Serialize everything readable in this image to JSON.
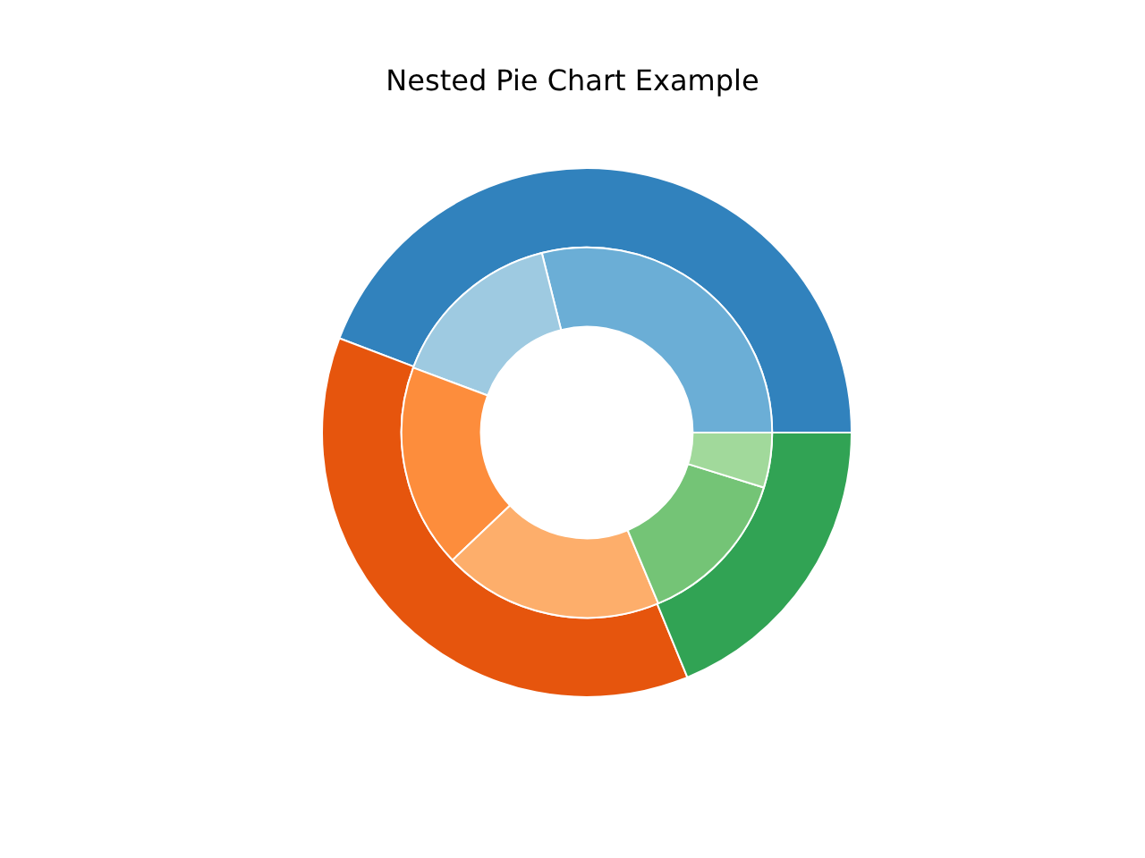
{
  "chart_data": {
    "type": "donut",
    "title": "Nested Pie Chart Example",
    "series": [
      {
        "values": [
          44.2,
          37.0,
          18.8
        ],
        "colors": [
          "#3182bd",
          "#e6550d",
          "#31a354"
        ]
      },
      {
        "values": [
          28.9,
          15.4,
          17.8,
          19.2,
          13.9,
          4.8
        ],
        "colors": [
          "#6baed6",
          "#9ecae1",
          "#fd8d3c",
          "#fdae6b",
          "#74c476",
          "#a1d99b"
        ]
      }
    ]
  }
}
